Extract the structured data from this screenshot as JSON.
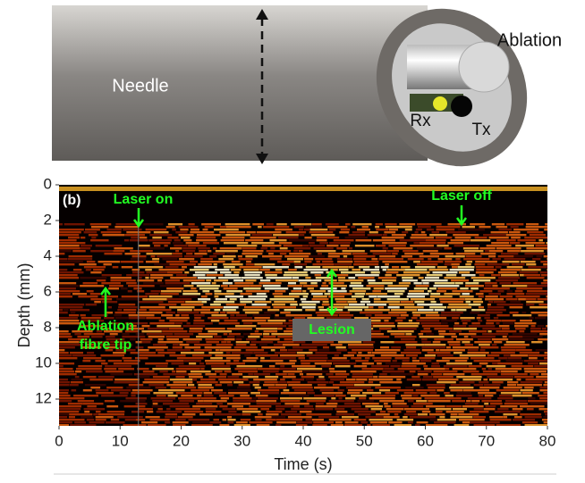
{
  "diagram": {
    "needle_label": "Needle",
    "ablation_label": "Ablation",
    "rx_label": "Rx",
    "tx_label": "Tx"
  },
  "chart_data": {
    "type": "image",
    "panel_label": "(b)",
    "xlabel": "Time (s)",
    "ylabel": "Depth (mm)",
    "xlim": [
      0,
      80
    ],
    "xticks": [
      0,
      10,
      20,
      30,
      40,
      50,
      60,
      70,
      80
    ],
    "ylim": [
      0,
      13.5
    ],
    "yticks": [
      0,
      2,
      4,
      6,
      8,
      10,
      12
    ],
    "annotations": {
      "laser_on": "Laser on",
      "laser_off": "Laser off",
      "fibre_tip_1": "Ablation",
      "fibre_tip_2": "fibre tip",
      "lesion": "Lesion"
    }
  }
}
